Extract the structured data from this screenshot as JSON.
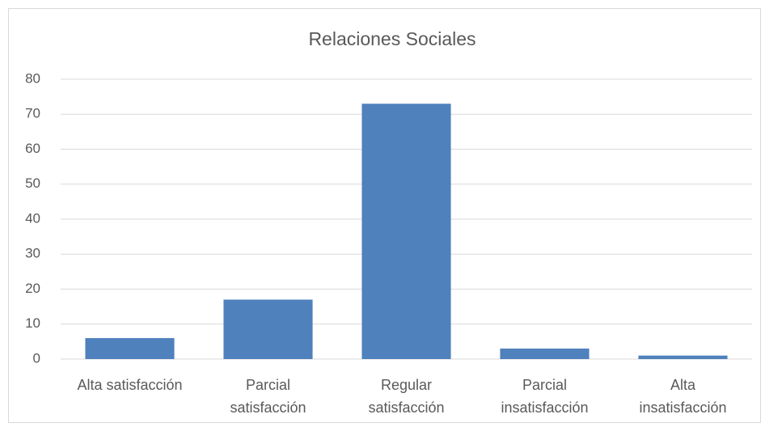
{
  "chart_data": {
    "type": "bar",
    "title": "Relaciones Sociales",
    "categories": [
      "Alta satisfacción",
      "Parcial\nsatisfacción",
      "Regular\nsatisfacción",
      "Parcial\ninsatisfacción",
      "Alta\ninsatisfacción"
    ],
    "values": [
      6,
      17,
      73,
      3,
      1
    ],
    "color": "#4f81bd",
    "ylim": [
      0,
      80
    ],
    "yticks": [
      0,
      10,
      20,
      30,
      40,
      50,
      60,
      70,
      80
    ],
    "grid": true
  }
}
